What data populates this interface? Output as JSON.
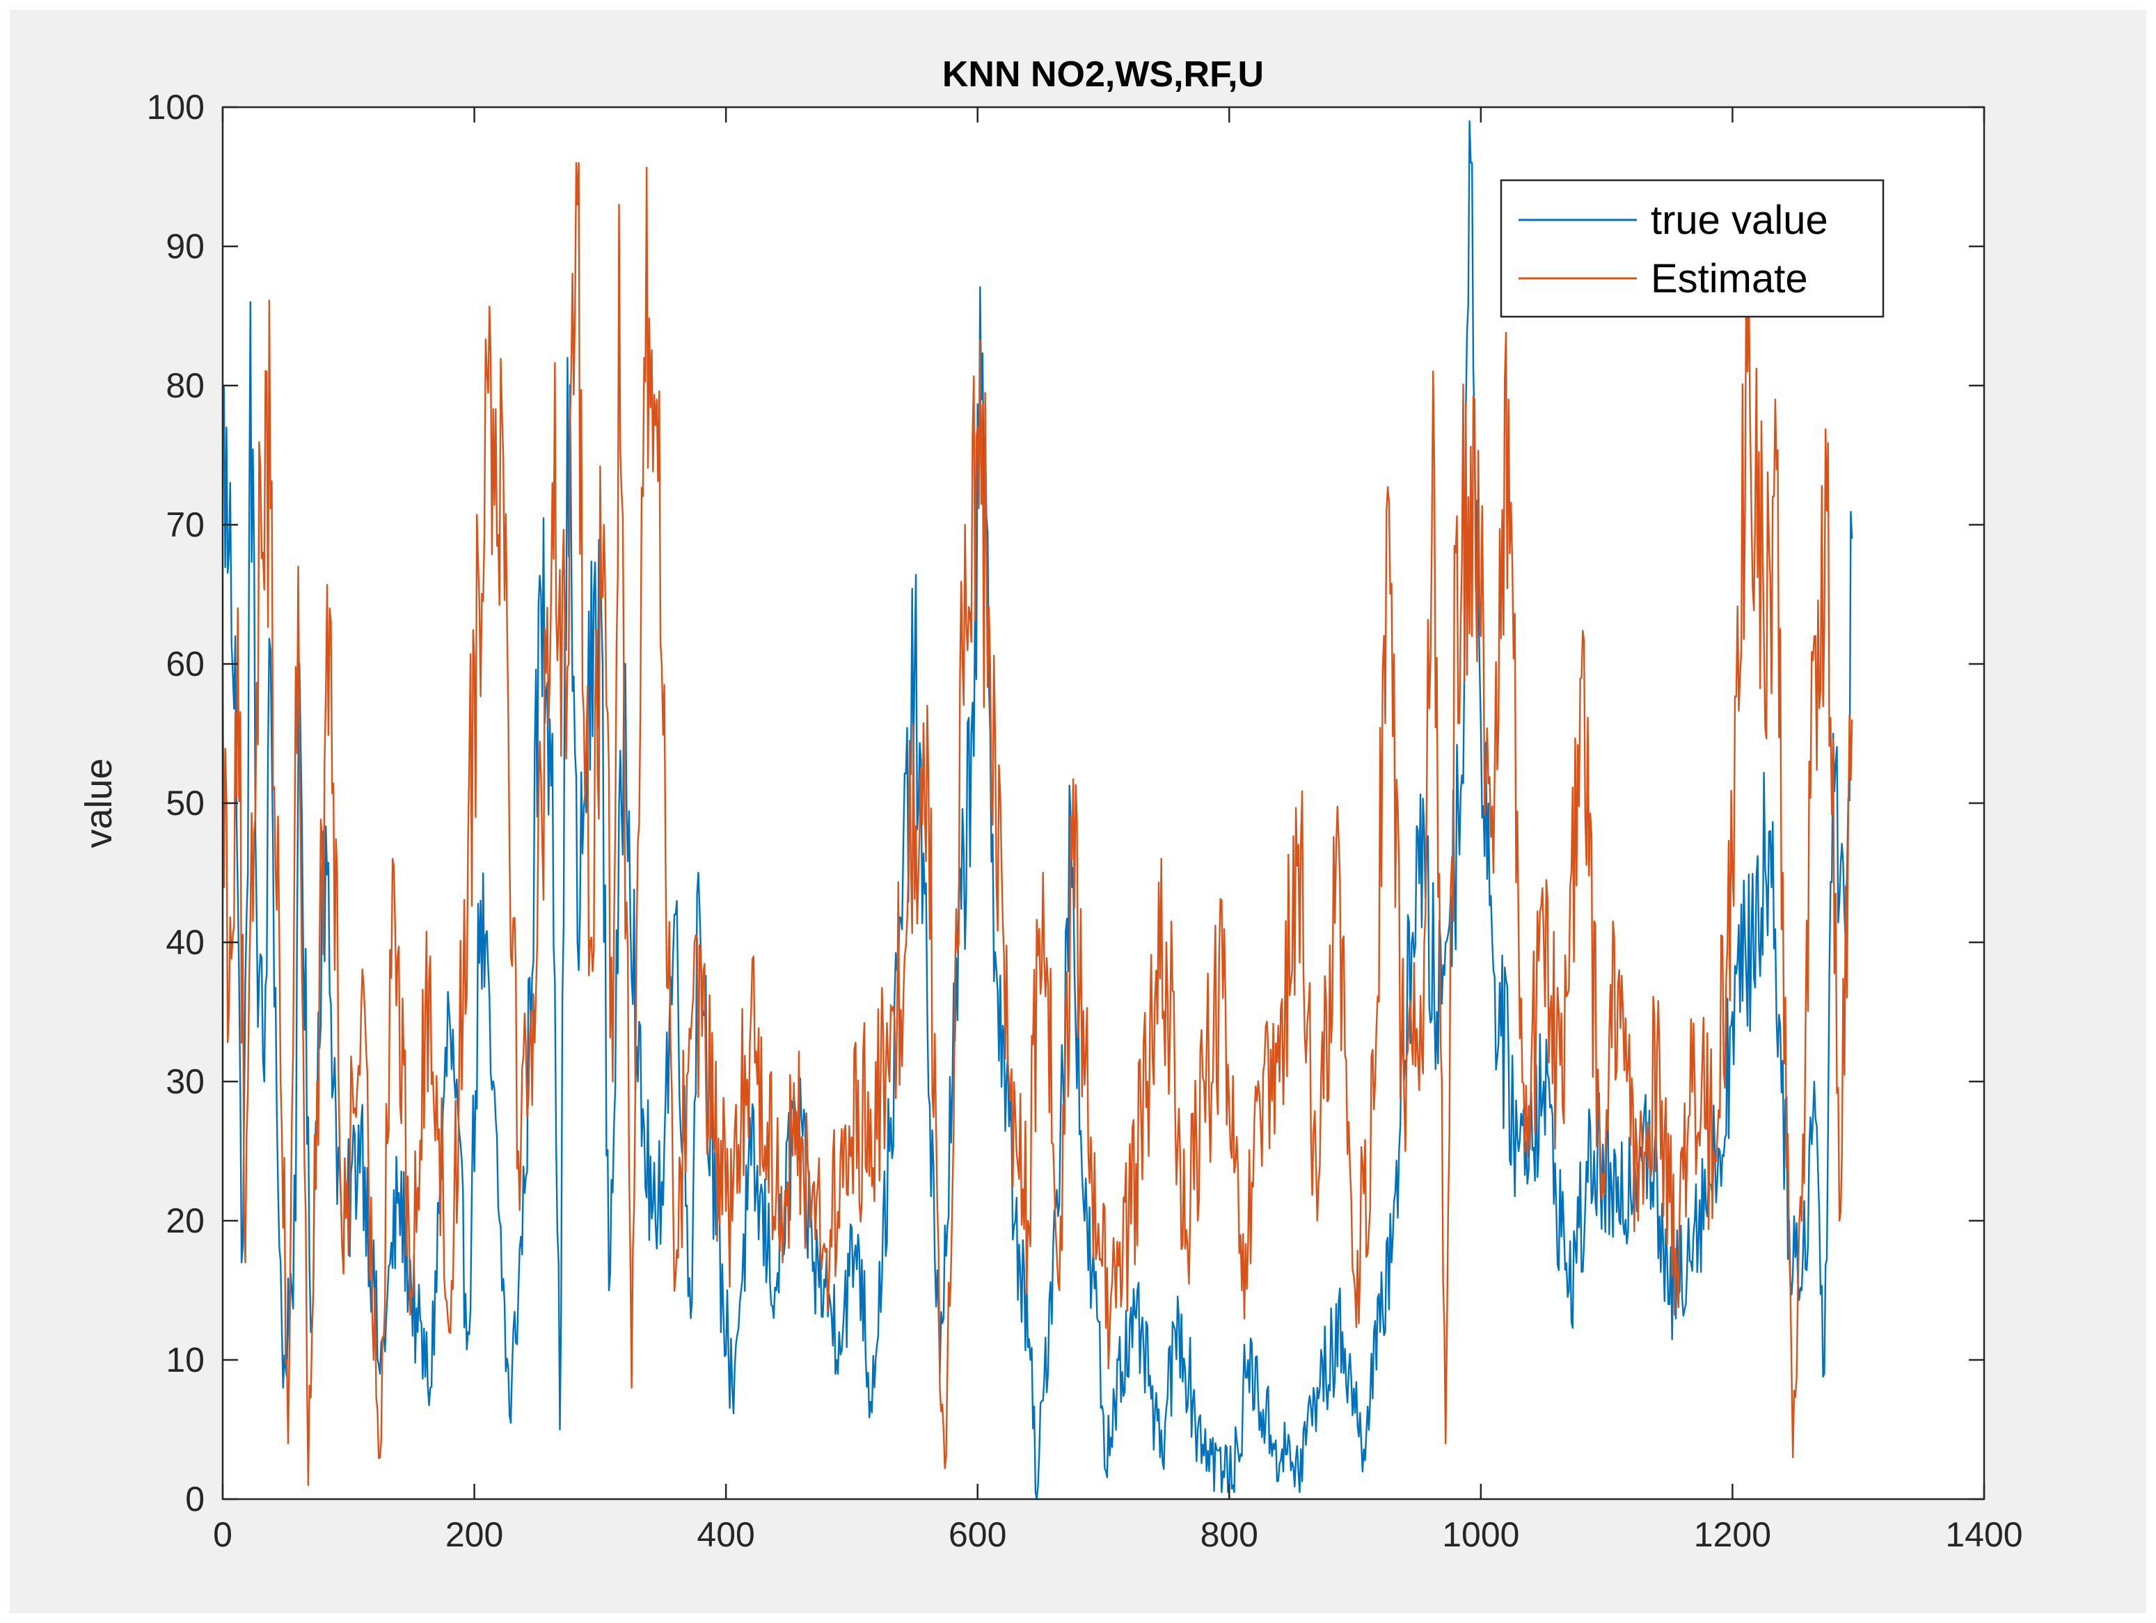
{
  "chart_data": {
    "type": "line",
    "title": "KNN NO2,WS,RF,U",
    "xlabel": "",
    "ylabel": "value",
    "xlim": [
      0,
      1400
    ],
    "ylim": [
      0,
      100
    ],
    "xticks": [
      0,
      200,
      400,
      600,
      800,
      1000,
      1200,
      1400
    ],
    "yticks": [
      0,
      10,
      20,
      30,
      40,
      50,
      60,
      70,
      80,
      90,
      100
    ],
    "xtick_labels": [
      "0",
      "200",
      "400",
      "600",
      "800",
      "1000",
      "1200",
      "1400"
    ],
    "ytick_labels": [
      "0",
      "10",
      "20",
      "30",
      "40",
      "50",
      "60",
      "70",
      "80",
      "90",
      "100"
    ],
    "grid": false,
    "legend_position": "top-right",
    "n_points": 1296,
    "series": [
      {
        "name": "true value",
        "color": "#0072BD",
        "keypoints": [
          [
            0,
            77
          ],
          [
            5,
            68
          ],
          [
            10,
            62
          ],
          [
            15,
            17
          ],
          [
            20,
            45
          ],
          [
            22,
            86
          ],
          [
            27,
            42
          ],
          [
            33,
            30
          ],
          [
            38,
            61
          ],
          [
            43,
            28
          ],
          [
            48,
            8
          ],
          [
            58,
            20
          ],
          [
            61,
            60
          ],
          [
            70,
            12
          ],
          [
            80,
            48
          ],
          [
            95,
            18
          ],
          [
            110,
            27
          ],
          [
            125,
            9
          ],
          [
            140,
            22
          ],
          [
            155,
            12
          ],
          [
            165,
            8
          ],
          [
            180,
            35
          ],
          [
            195,
            12
          ],
          [
            205,
            43
          ],
          [
            220,
            20
          ],
          [
            228,
            6
          ],
          [
            240,
            22
          ],
          [
            253,
            65
          ],
          [
            262,
            55
          ],
          [
            268,
            5
          ],
          [
            274,
            82
          ],
          [
            282,
            40
          ],
          [
            290,
            55
          ],
          [
            300,
            68
          ],
          [
            307,
            15
          ],
          [
            320,
            60
          ],
          [
            330,
            30
          ],
          [
            345,
            18
          ],
          [
            360,
            42
          ],
          [
            372,
            13
          ],
          [
            378,
            45
          ],
          [
            392,
            19
          ],
          [
            405,
            8
          ],
          [
            420,
            24
          ],
          [
            440,
            15
          ],
          [
            455,
            28
          ],
          [
            470,
            17
          ],
          [
            490,
            12
          ],
          [
            505,
            19
          ],
          [
            515,
            7
          ],
          [
            530,
            25
          ],
          [
            550,
            60
          ],
          [
            560,
            35
          ],
          [
            570,
            9
          ],
          [
            580,
            30
          ],
          [
            595,
            55
          ],
          [
            603,
            79
          ],
          [
            615,
            38
          ],
          [
            630,
            20
          ],
          [
            642,
            10
          ],
          [
            647,
            0
          ],
          [
            660,
            18
          ],
          [
            668,
            30
          ],
          [
            674,
            49
          ],
          [
            685,
            20
          ],
          [
            695,
            13
          ],
          [
            702,
            2
          ],
          [
            712,
            10
          ],
          [
            730,
            12
          ],
          [
            745,
            3
          ],
          [
            760,
            13
          ],
          [
            775,
            5
          ],
          [
            795,
            2
          ],
          [
            803,
            1
          ],
          [
            815,
            10
          ],
          [
            835,
            4
          ],
          [
            855,
            2
          ],
          [
            870,
            8
          ],
          [
            890,
            12
          ],
          [
            905,
            4
          ],
          [
            920,
            12
          ],
          [
            935,
            25
          ],
          [
            950,
            48
          ],
          [
            965,
            35
          ],
          [
            972,
            40
          ],
          [
            985,
            52
          ],
          [
            991,
            99
          ],
          [
            999,
            60
          ],
          [
            1010,
            38
          ],
          [
            1030,
            25
          ],
          [
            1050,
            30
          ],
          [
            1070,
            15
          ],
          [
            1090,
            25
          ],
          [
            1110,
            20
          ],
          [
            1130,
            28
          ],
          [
            1150,
            14
          ],
          [
            1170,
            20
          ],
          [
            1190,
            25
          ],
          [
            1200,
            35
          ],
          [
            1215,
            40
          ],
          [
            1230,
            48
          ],
          [
            1245,
            20
          ],
          [
            1255,
            15
          ],
          [
            1265,
            30
          ],
          [
            1273,
            9
          ],
          [
            1280,
            55
          ],
          [
            1290,
            40
          ],
          [
            1295,
            69
          ]
        ]
      },
      {
        "name": "Estimate",
        "color": "#D95319",
        "keypoints": [
          [
            0,
            60
          ],
          [
            5,
            35
          ],
          [
            12,
            64
          ],
          [
            18,
            17
          ],
          [
            30,
            74
          ],
          [
            35,
            81
          ],
          [
            45,
            40
          ],
          [
            52,
            4
          ],
          [
            60,
            67
          ],
          [
            68,
            1
          ],
          [
            75,
            30
          ],
          [
            85,
            64
          ],
          [
            95,
            18
          ],
          [
            110,
            35
          ],
          [
            125,
            3
          ],
          [
            135,
            46
          ],
          [
            150,
            15
          ],
          [
            165,
            39
          ],
          [
            180,
            12
          ],
          [
            195,
            47
          ],
          [
            210,
            81
          ],
          [
            222,
            78
          ],
          [
            235,
            25
          ],
          [
            250,
            40
          ],
          [
            262,
            73
          ],
          [
            275,
            60
          ],
          [
            282,
            93
          ],
          [
            292,
            40
          ],
          [
            303,
            70
          ],
          [
            310,
            30
          ],
          [
            315,
            93
          ],
          [
            325,
            8
          ],
          [
            335,
            82
          ],
          [
            345,
            79
          ],
          [
            360,
            16
          ],
          [
            375,
            40
          ],
          [
            390,
            26
          ],
          [
            405,
            20
          ],
          [
            420,
            35
          ],
          [
            440,
            22
          ],
          [
            460,
            26
          ],
          [
            480,
            18
          ],
          [
            500,
            26
          ],
          [
            515,
            28
          ],
          [
            530,
            30
          ],
          [
            545,
            45
          ],
          [
            560,
            57
          ],
          [
            570,
            8
          ],
          [
            575,
            3
          ],
          [
            590,
            70
          ],
          [
            600,
            77
          ],
          [
            610,
            60
          ],
          [
            625,
            30
          ],
          [
            640,
            20
          ],
          [
            652,
            45
          ],
          [
            665,
            15
          ],
          [
            675,
            46
          ],
          [
            690,
            26
          ],
          [
            705,
            12
          ],
          [
            720,
            20
          ],
          [
            735,
            30
          ],
          [
            750,
            40
          ],
          [
            765,
            18
          ],
          [
            780,
            30
          ],
          [
            795,
            36
          ],
          [
            810,
            15
          ],
          [
            825,
            27
          ],
          [
            840,
            30
          ],
          [
            855,
            47
          ],
          [
            870,
            20
          ],
          [
            885,
            47
          ],
          [
            900,
            15
          ],
          [
            915,
            28
          ],
          [
            925,
            71
          ],
          [
            940,
            25
          ],
          [
            955,
            40
          ],
          [
            963,
            74
          ],
          [
            972,
            4
          ],
          [
            980,
            68
          ],
          [
            990,
            72
          ],
          [
            1000,
            62
          ],
          [
            1010,
            45
          ],
          [
            1022,
            79
          ],
          [
            1035,
            25
          ],
          [
            1050,
            40
          ],
          [
            1065,
            28
          ],
          [
            1080,
            59
          ],
          [
            1095,
            25
          ],
          [
            1110,
            38
          ],
          [
            1125,
            20
          ],
          [
            1140,
            32
          ],
          [
            1155,
            18
          ],
          [
            1170,
            30
          ],
          [
            1185,
            25
          ],
          [
            1200,
            45
          ],
          [
            1212,
            81
          ],
          [
            1225,
            62
          ],
          [
            1235,
            74
          ],
          [
            1240,
            45
          ],
          [
            1248,
            3
          ],
          [
            1255,
            20
          ],
          [
            1265,
            62
          ],
          [
            1275,
            71
          ],
          [
            1285,
            20
          ],
          [
            1295,
            56
          ]
        ]
      }
    ]
  }
}
